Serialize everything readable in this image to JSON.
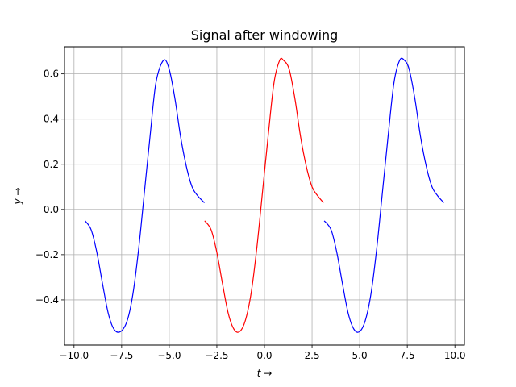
{
  "chart_data": {
    "type": "line",
    "title": "Signal after windowing",
    "xlabel": "t →",
    "ylabel": "y →",
    "xlim": [
      -10.5,
      10.5
    ],
    "ylim": [
      -0.6,
      0.72
    ],
    "grid": true,
    "xticks": [
      -10.0,
      -7.5,
      -5.0,
      -2.5,
      0.0,
      2.5,
      5.0,
      7.5,
      10.0
    ],
    "xtick_labels": [
      "−10.0",
      "−7.5",
      "−5.0",
      "−2.5",
      "0.0",
      "2.5",
      "5.0",
      "7.5",
      "10.0"
    ],
    "yticks": [
      -0.4,
      -0.2,
      0.0,
      0.2,
      0.4,
      0.6
    ],
    "ytick_labels": [
      "−0.4",
      "−0.2",
      "0.0",
      "0.2",
      "0.4",
      "0.6"
    ],
    "series": [
      {
        "color": "#0000ff",
        "x": [
          -9.42,
          -9.1,
          -8.8,
          -8.5,
          -8.2,
          -7.9,
          -7.55,
          -7.2,
          -6.9,
          -6.6,
          -6.3,
          -6.0,
          -5.7,
          -5.3,
          -5.0,
          -4.7,
          -4.4,
          -4.1,
          -3.8,
          -3.5,
          -3.15
        ],
        "y": [
          -0.05,
          -0.09,
          -0.19,
          -0.33,
          -0.46,
          -0.53,
          -0.54,
          -0.49,
          -0.37,
          -0.17,
          0.08,
          0.33,
          0.56,
          0.66,
          0.62,
          0.49,
          0.32,
          0.19,
          0.1,
          0.06,
          0.03
        ]
      },
      {
        "color": "#ff0000",
        "x": [
          -3.14,
          -2.8,
          -2.5,
          -2.2,
          -1.9,
          -1.6,
          -1.3,
          -1.0,
          -0.7,
          -0.4,
          -0.1,
          0.2,
          0.5,
          0.8,
          1.0,
          1.3,
          1.6,
          1.9,
          2.2,
          2.5,
          2.8,
          3.1
        ],
        "y": [
          -0.05,
          -0.09,
          -0.19,
          -0.33,
          -0.46,
          -0.53,
          -0.54,
          -0.49,
          -0.37,
          -0.17,
          0.08,
          0.33,
          0.56,
          0.66,
          0.66,
          0.62,
          0.49,
          0.32,
          0.19,
          0.1,
          0.06,
          0.03
        ]
      },
      {
        "color": "#0000ff",
        "x": [
          3.14,
          3.5,
          3.8,
          4.1,
          4.4,
          4.7,
          5.0,
          5.3,
          5.6,
          5.9,
          6.2,
          6.5,
          6.8,
          7.1,
          7.35,
          7.6,
          7.9,
          8.2,
          8.5,
          8.8,
          9.1,
          9.42
        ],
        "y": [
          -0.05,
          -0.09,
          -0.19,
          -0.33,
          -0.46,
          -0.53,
          -0.54,
          -0.49,
          -0.37,
          -0.17,
          0.08,
          0.33,
          0.56,
          0.66,
          0.66,
          0.62,
          0.49,
          0.32,
          0.19,
          0.1,
          0.06,
          0.03
        ]
      }
    ]
  }
}
